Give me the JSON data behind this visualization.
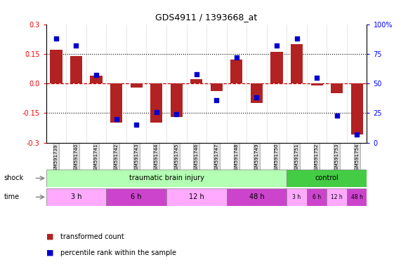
{
  "title": "GDS4911 / 1393668_at",
  "samples": [
    "GSM591739",
    "GSM591740",
    "GSM591741",
    "GSM591742",
    "GSM591743",
    "GSM591744",
    "GSM591745",
    "GSM591746",
    "GSM591747",
    "GSM591748",
    "GSM591749",
    "GSM591750",
    "GSM591751",
    "GSM591752",
    "GSM591753",
    "GSM591754"
  ],
  "bar_values": [
    0.17,
    0.14,
    0.04,
    -0.2,
    -0.02,
    -0.2,
    -0.17,
    0.02,
    -0.04,
    0.12,
    -0.1,
    0.16,
    0.2,
    -0.01,
    -0.05,
    -0.26
  ],
  "dot_values": [
    88,
    82,
    57,
    20,
    15,
    26,
    24,
    58,
    36,
    72,
    38,
    82,
    88,
    55,
    23,
    7
  ],
  "ylim_left": [
    -0.3,
    0.3
  ],
  "ylim_right": [
    0,
    100
  ],
  "yticks_left": [
    -0.3,
    -0.15,
    0.0,
    0.15,
    0.3
  ],
  "yticks_right": [
    0,
    25,
    50,
    75,
    100
  ],
  "bar_color": "#b22222",
  "dot_color": "#0000cd",
  "hline_color": "#cc0000",
  "dotline_y": [
    0.15,
    -0.15
  ],
  "shock_label": "shock",
  "time_label": "time",
  "shock_groups": [
    {
      "label": "traumatic brain injury",
      "start": 0,
      "end": 12,
      "color": "#b3ffb3"
    },
    {
      "label": "control",
      "start": 12,
      "end": 16,
      "color": "#44cc44"
    }
  ],
  "time_groups_injury": [
    {
      "label": "3 h",
      "start": 0,
      "end": 3,
      "color": "#ffaaff"
    },
    {
      "label": "6 h",
      "start": 3,
      "end": 6,
      "color": "#cc44cc"
    },
    {
      "label": "12 h",
      "start": 6,
      "end": 9,
      "color": "#ffaaff"
    },
    {
      "label": "48 h",
      "start": 9,
      "end": 12,
      "color": "#cc44cc"
    }
  ],
  "time_groups_control": [
    {
      "label": "3 h",
      "start": 12,
      "end": 13,
      "color": "#ffaaff"
    },
    {
      "label": "6 h",
      "start": 13,
      "end": 14,
      "color": "#cc44cc"
    },
    {
      "label": "12 h",
      "start": 14,
      "end": 15,
      "color": "#ffaaff"
    },
    {
      "label": "48 h",
      "start": 15,
      "end": 16,
      "color": "#cc44cc"
    }
  ],
  "legend_bar_label": "transformed count",
  "legend_dot_label": "percentile rank within the sample",
  "background_color": "#ffffff",
  "axis_bg_color": "#ffffff",
  "tick_label_bg": "#dddddd"
}
